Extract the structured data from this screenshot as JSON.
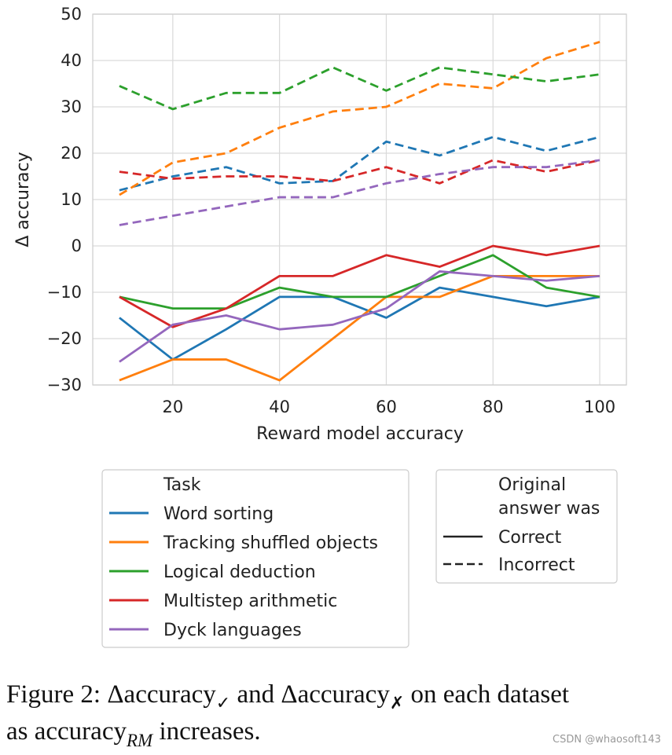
{
  "chart_data": {
    "type": "line",
    "xlabel": "Reward model accuracy",
    "ylabel": "Δ accuracy",
    "xlim": [
      5,
      105
    ],
    "ylim": [
      -30,
      50
    ],
    "x": [
      10,
      20,
      30,
      40,
      50,
      60,
      70,
      80,
      90,
      100
    ],
    "x_ticks": [
      20,
      40,
      60,
      80,
      100
    ],
    "y_ticks": [
      50,
      40,
      30,
      20,
      10,
      0,
      -10,
      -20,
      -30
    ],
    "y_tick_labels": [
      "50",
      "40",
      "30",
      "20",
      "10",
      "0",
      "−10",
      "−20",
      "−30"
    ],
    "grid": true,
    "legend_placement": "below",
    "series": [
      {
        "name": "Word sorting",
        "task": "Word sorting",
        "answer": "Correct",
        "color": "#1f77b4",
        "dash": "solid",
        "values": [
          -15.5,
          -24.5,
          -18,
          -11,
          -11,
          -15.5,
          -9,
          -11,
          -13,
          -11
        ]
      },
      {
        "name": "Word sorting",
        "task": "Word sorting",
        "answer": "Incorrect",
        "color": "#1f77b4",
        "dash": "dashed",
        "values": [
          12,
          15,
          17,
          13.5,
          14,
          22.5,
          19.5,
          23.5,
          20.5,
          23.5
        ]
      },
      {
        "name": "Tracking shuffled objects",
        "task": "Tracking shuffled objects",
        "answer": "Correct",
        "color": "#ff7f0e",
        "dash": "solid",
        "values": [
          -29,
          -24.5,
          -24.5,
          -29,
          -20,
          -11,
          -11,
          -6.5,
          -6.5,
          -6.5
        ]
      },
      {
        "name": "Tracking shuffled objects",
        "task": "Tracking shuffled objects",
        "answer": "Incorrect",
        "color": "#ff7f0e",
        "dash": "dashed",
        "values": [
          11,
          18,
          20,
          25.5,
          29,
          30,
          35,
          34,
          40.5,
          44
        ]
      },
      {
        "name": "Logical deduction",
        "task": "Logical deduction",
        "answer": "Correct",
        "color": "#2ca02c",
        "dash": "solid",
        "values": [
          -11,
          -13.5,
          -13.5,
          -9,
          -11,
          -11,
          -6.5,
          -2,
          -9,
          -11
        ]
      },
      {
        "name": "Logical deduction",
        "task": "Logical deduction",
        "answer": "Incorrect",
        "color": "#2ca02c",
        "dash": "dashed",
        "values": [
          34.5,
          29.5,
          33,
          33,
          38.5,
          33.5,
          38.5,
          37,
          35.5,
          37
        ]
      },
      {
        "name": "Multistep arithmetic",
        "task": "Multistep arithmetic",
        "answer": "Correct",
        "color": "#d62728",
        "dash": "solid",
        "values": [
          -11,
          -17.5,
          -13.5,
          -6.5,
          -6.5,
          -2,
          -4.5,
          0,
          -2,
          0
        ]
      },
      {
        "name": "Multistep arithmetic",
        "task": "Multistep arithmetic",
        "answer": "Incorrect",
        "color": "#d62728",
        "dash": "dashed",
        "values": [
          16,
          14.5,
          15,
          15,
          14,
          17,
          13.5,
          18.5,
          16,
          18.5
        ]
      },
      {
        "name": "Dyck languages",
        "task": "Dyck languages",
        "answer": "Correct",
        "color": "#9467bd",
        "dash": "solid",
        "values": [
          -25,
          -17,
          -15,
          -18,
          -17,
          -13.5,
          -5.5,
          -6.5,
          -7.5,
          -6.5
        ]
      },
      {
        "name": "Dyck languages",
        "task": "Dyck languages",
        "answer": "Incorrect",
        "color": "#9467bd",
        "dash": "dashed",
        "values": [
          4.5,
          6.5,
          8.5,
          10.5,
          10.5,
          13.5,
          15.5,
          17,
          17,
          18.5
        ]
      }
    ],
    "legend_task": {
      "title": "Task",
      "entries": [
        {
          "label": "Word sorting",
          "color": "#1f77b4"
        },
        {
          "label": "Tracking shuffled objects",
          "color": "#ff7f0e"
        },
        {
          "label": "Logical deduction",
          "color": "#2ca02c"
        },
        {
          "label": "Multistep arithmetic",
          "color": "#d62728"
        },
        {
          "label": "Dyck languages",
          "color": "#9467bd"
        }
      ]
    },
    "legend_answer": {
      "title_line1": "Original",
      "title_line2": "answer was",
      "entries": [
        {
          "label": "Correct",
          "dash": "solid"
        },
        {
          "label": "Incorrect",
          "dash": "dashed"
        }
      ]
    }
  },
  "caption": {
    "fig_label": "Figure 2: ",
    "delta1": "Δaccuracy",
    "check_sub": "✓",
    "and_text": " and ",
    "delta2": "Δaccuracy",
    "cross_sub": "✗",
    "rest_line1": " on each dataset",
    "line2_start": "as accuracy",
    "rm_sub": "RM",
    "line2_end": " increases."
  },
  "watermark": "CSDN @whaosoft143"
}
